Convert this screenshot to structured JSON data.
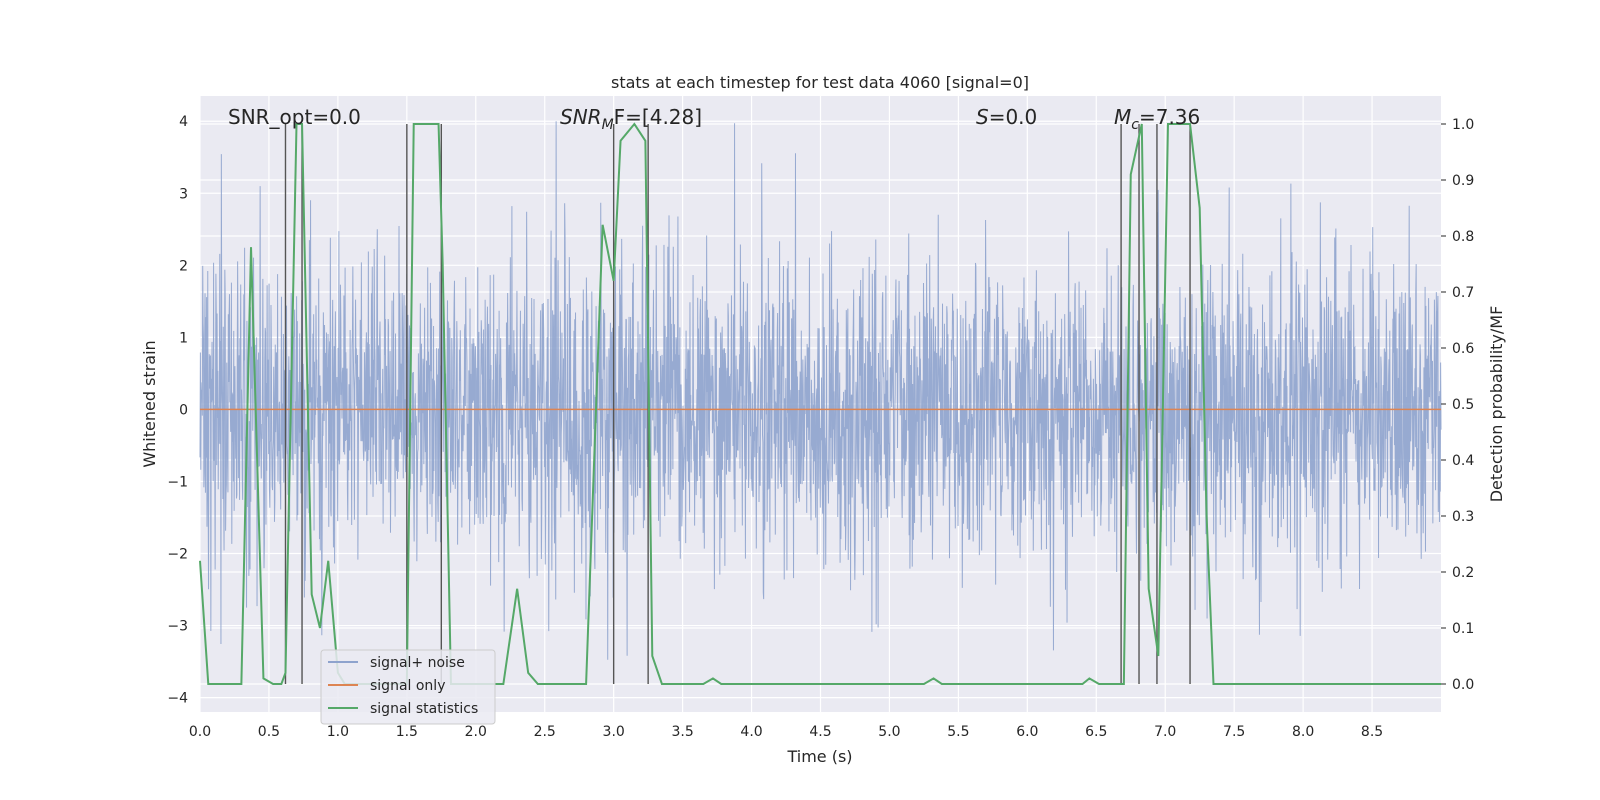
{
  "chart_data": {
    "type": "line",
    "title": "stats at each timestep for test data 4060 [signal=0]",
    "xlabel": "Time (s)",
    "ylabel": "Whitened strain",
    "ylabel_right": "Detection probability/MF",
    "xlim": [
      0.0,
      9.0
    ],
    "ylim": [
      -4.2,
      4.35
    ],
    "ylim_right": [
      -0.05,
      1.05
    ],
    "xticks": [
      "0.0",
      "0.5",
      "1.0",
      "1.5",
      "2.0",
      "2.5",
      "3.0",
      "3.5",
      "4.0",
      "4.5",
      "5.0",
      "5.5",
      "6.0",
      "6.5",
      "7.0",
      "7.5",
      "8.0",
      "8.5"
    ],
    "yticks": [
      "4",
      "3",
      "2",
      "1",
      "0",
      "−1",
      "−2",
      "−3",
      "−4"
    ],
    "yticks_right": [
      "1.0",
      "0.9",
      "0.8",
      "0.7",
      "0.6",
      "0.5",
      "0.4",
      "0.3",
      "0.2",
      "0.1",
      "0.0"
    ],
    "grid": true,
    "legend_position": "lower-left",
    "annotations": {
      "snr_opt": "SNR_opt=0.0",
      "snr_mf_base": "SNR",
      "snr_mf_sub": "M",
      "snr_mf_tail": "F=[4.28]",
      "s_sym": "S",
      "s_val": "=0.0",
      "mc_sym": "M",
      "mc_sub": "c",
      "mc_val": "=7.36"
    },
    "series": [
      {
        "name": "signal+ noise",
        "axis": "left",
        "color": "#8ea3cd",
        "description": "dense whitened noise, approx gaussian, std ~1"
      },
      {
        "name": "signal only",
        "axis": "left",
        "color": "#dd8452",
        "x": [
          0.0,
          9.0
        ],
        "y": [
          0.0,
          0.0
        ]
      },
      {
        "name": "signal statistics",
        "axis": "right",
        "color": "#55a868",
        "x": [
          0.0,
          0.06,
          0.3,
          0.37,
          0.46,
          0.53,
          0.59,
          0.62,
          0.7,
          0.74,
          0.81,
          0.87,
          0.93,
          1.0,
          1.05,
          1.1,
          1.5,
          1.55,
          1.6,
          1.73,
          1.76,
          1.82,
          1.88,
          2.2,
          2.3,
          2.38,
          2.45,
          2.8,
          2.92,
          3.0,
          3.05,
          3.15,
          3.23,
          3.28,
          3.35,
          3.65,
          3.72,
          3.78,
          5.25,
          5.32,
          5.38,
          6.4,
          6.45,
          6.52,
          6.7,
          6.75,
          6.83,
          6.88,
          6.95,
          7.02,
          7.06,
          7.18,
          7.25,
          7.3,
          7.35,
          9.0
        ],
        "y": [
          0.22,
          0.0,
          0.0,
          0.78,
          0.01,
          0.0,
          0.0,
          0.02,
          1.0,
          1.0,
          0.16,
          0.1,
          0.22,
          0.02,
          0.0,
          0.0,
          0.0,
          1.0,
          1.0,
          1.0,
          0.75,
          0.0,
          0.0,
          0.0,
          0.17,
          0.02,
          0.0,
          0.0,
          0.82,
          0.72,
          0.97,
          1.0,
          0.97,
          0.05,
          0.0,
          0.0,
          0.01,
          0.0,
          0.0,
          0.01,
          0.0,
          0.0,
          0.01,
          0.0,
          0.0,
          0.91,
          1.0,
          0.17,
          0.05,
          1.0,
          1.0,
          1.0,
          0.85,
          0.3,
          0.0,
          0.0
        ]
      }
    ],
    "vlines_x": [
      0.62,
      0.74,
      1.5,
      1.75,
      3.0,
      3.25,
      6.68,
      6.81,
      6.94,
      7.18
    ]
  }
}
